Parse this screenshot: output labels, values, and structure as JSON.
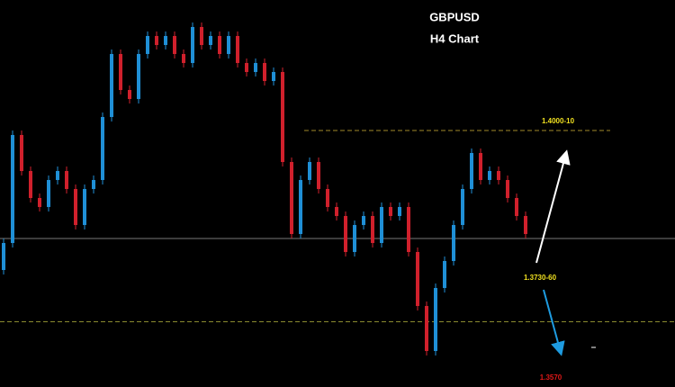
{
  "chart_data": {
    "type": "candlestick",
    "title": "GBPUSD",
    "subtitle": "H4 Chart",
    "ylim": [
      1.344,
      1.43
    ],
    "up_color": "#1f8fd6",
    "down_color": "#d0202c",
    "open": [
      1.37,
      1.376,
      1.4,
      1.392,
      1.386,
      1.384,
      1.39,
      1.392,
      1.388,
      1.38,
      1.388,
      1.39,
      1.404,
      1.418,
      1.41,
      1.408,
      1.418,
      1.422,
      1.42,
      1.422,
      1.418,
      1.416,
      1.424,
      1.42,
      1.422,
      1.418,
      1.422,
      1.416,
      1.414,
      1.416,
      1.412,
      1.414,
      1.394,
      1.378,
      1.39,
      1.394,
      1.388,
      1.384,
      1.382,
      1.374,
      1.38,
      1.382,
      1.376,
      1.384,
      1.382,
      1.384,
      1.374,
      1.362,
      1.352,
      1.366,
      1.372,
      1.38,
      1.388,
      1.396,
      1.39,
      1.392,
      1.39,
      1.386,
      1.382
    ],
    "high": [
      1.377,
      1.401,
      1.401,
      1.393,
      1.387,
      1.391,
      1.393,
      1.393,
      1.389,
      1.389,
      1.391,
      1.405,
      1.419,
      1.419,
      1.411,
      1.419,
      1.423,
      1.423,
      1.423,
      1.423,
      1.419,
      1.425,
      1.425,
      1.423,
      1.423,
      1.423,
      1.423,
      1.417,
      1.417,
      1.417,
      1.415,
      1.415,
      1.395,
      1.391,
      1.395,
      1.395,
      1.389,
      1.385,
      1.383,
      1.381,
      1.383,
      1.383,
      1.385,
      1.385,
      1.385,
      1.385,
      1.375,
      1.363,
      1.367,
      1.373,
      1.381,
      1.389,
      1.397,
      1.397,
      1.393,
      1.393,
      1.391,
      1.387,
      1.383
    ],
    "low": [
      1.369,
      1.375,
      1.391,
      1.385,
      1.383,
      1.383,
      1.389,
      1.387,
      1.379,
      1.379,
      1.387,
      1.389,
      1.403,
      1.409,
      1.407,
      1.407,
      1.417,
      1.419,
      1.419,
      1.417,
      1.415,
      1.415,
      1.419,
      1.419,
      1.417,
      1.417,
      1.415,
      1.413,
      1.413,
      1.411,
      1.411,
      1.393,
      1.377,
      1.377,
      1.389,
      1.387,
      1.383,
      1.381,
      1.373,
      1.373,
      1.379,
      1.375,
      1.375,
      1.381,
      1.381,
      1.373,
      1.361,
      1.351,
      1.351,
      1.365,
      1.371,
      1.379,
      1.387,
      1.389,
      1.389,
      1.389,
      1.385,
      1.381,
      1.377
    ],
    "close": [
      1.376,
      1.4,
      1.392,
      1.386,
      1.384,
      1.39,
      1.392,
      1.388,
      1.38,
      1.388,
      1.39,
      1.404,
      1.418,
      1.41,
      1.408,
      1.418,
      1.422,
      1.42,
      1.422,
      1.418,
      1.416,
      1.424,
      1.42,
      1.422,
      1.418,
      1.422,
      1.416,
      1.414,
      1.416,
      1.412,
      1.414,
      1.394,
      1.378,
      1.39,
      1.394,
      1.388,
      1.384,
      1.382,
      1.374,
      1.38,
      1.382,
      1.376,
      1.384,
      1.382,
      1.384,
      1.374,
      1.362,
      1.352,
      1.366,
      1.372,
      1.38,
      1.388,
      1.396,
      1.39,
      1.392,
      1.39,
      1.386,
      1.382,
      1.378
    ],
    "levels": [
      {
        "value": 1.401,
        "color": "#a08a2a",
        "dashed": true
      },
      {
        "value": 1.377,
        "color": "#777777",
        "dashed": false
      },
      {
        "value": 1.3585,
        "color": "#8a8a30",
        "dashed": true
      }
    ],
    "annotations": [
      {
        "text": "1.4000-10",
        "color": "#f0e020"
      },
      {
        "text": "1.3730-60",
        "color": "#f0e020"
      },
      {
        "text": "1.3570",
        "color": "#e01818"
      }
    ]
  }
}
